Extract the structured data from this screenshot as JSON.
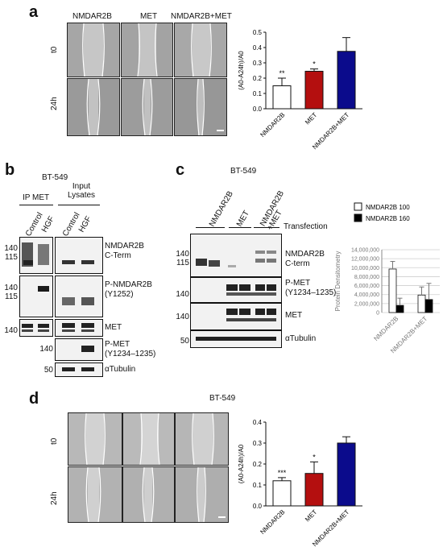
{
  "panels": {
    "a": {
      "letter": "a",
      "columns": [
        "NMDAR2B",
        "MET",
        "NMDAR2B+MET"
      ],
      "rows": [
        "t0",
        "24h"
      ]
    },
    "b": {
      "letter": "b",
      "cell_line": "BT-549",
      "group_ip": "IP MET",
      "group_input": "Input Lysates",
      "lanes": [
        "Control",
        "HGF",
        "Control",
        "HGF"
      ],
      "blots": [
        {
          "label": "NMDAR2B\nC-Term",
          "mw": [
            "140",
            "115"
          ]
        },
        {
          "label": "P-NMDAR2B\n(Y1252)",
          "mw": [
            "140",
            "115"
          ]
        },
        {
          "label": "MET",
          "mw": [
            "140"
          ]
        },
        {
          "label": "P-MET\n(Y1234–1235)",
          "mw": [
            "140"
          ]
        },
        {
          "label": "αTubulin",
          "mw": [
            "50"
          ]
        }
      ]
    },
    "c": {
      "letter": "c",
      "cell_line": "BT-549",
      "lanes": [
        "NMDAR2B",
        "MET",
        "NMDAR2B\n+MET"
      ],
      "transfection": "Transfection",
      "blots": [
        {
          "label": "NMDAR2B\nC-term",
          "mw": [
            "140",
            "115"
          ]
        },
        {
          "label": "P-MET\n(Y1234–1235)",
          "mw": [
            "140"
          ]
        },
        {
          "label": "MET",
          "mw": [
            "140"
          ]
        },
        {
          "label": "αTubulin",
          "mw": [
            "50"
          ]
        }
      ]
    },
    "d": {
      "letter": "d",
      "cell_line": "BT-549",
      "rows": [
        "t0",
        "24h"
      ]
    }
  },
  "chart_data": [
    {
      "id": "a",
      "type": "bar",
      "categories": [
        "NMDAR2B",
        "MET",
        "NMDAR2B+MET"
      ],
      "values": [
        0.15,
        0.245,
        0.375
      ],
      "errors": [
        0.05,
        0.015,
        0.09
      ],
      "significance": [
        "**",
        "*",
        ""
      ],
      "colors": [
        "#ffffff",
        "#b40f0f",
        "#0b0b8c"
      ],
      "ylabel": "(A0-A24h)/A0",
      "ylim": [
        0,
        0.5
      ],
      "yticks": [
        "0.0",
        "0.1",
        "0.2",
        "0.3",
        "0.4",
        "0.5"
      ]
    },
    {
      "id": "c",
      "type": "bar",
      "categories": [
        "NMDAR2B",
        "NMDAR2B+MET"
      ],
      "series": [
        {
          "name": "NMDAR2B 100",
          "values": [
            9700000,
            3900000
          ],
          "errors": [
            1700000,
            1800000
          ],
          "color": "#ffffff"
        },
        {
          "name": "NMDAR2B 160",
          "values": [
            1600000,
            2900000
          ],
          "errors": [
            1600000,
            3600000
          ],
          "color": "#000000"
        }
      ],
      "ylabel": "Protein Densitometry",
      "ylim": [
        0,
        14000000
      ],
      "yticks": [
        "0",
        "2,000,000",
        "4,000,000",
        "6,000,000",
        "8,000,000",
        "10,000,000",
        "12,000,000",
        "14,000,000"
      ],
      "grid": true,
      "legend": "top"
    },
    {
      "id": "d",
      "type": "bar",
      "categories": [
        "NMDAR2B",
        "MET",
        "NMDAR2B+MET"
      ],
      "values": [
        0.12,
        0.155,
        0.3
      ],
      "errors": [
        0.015,
        0.055,
        0.03
      ],
      "significance": [
        "***",
        "*",
        ""
      ],
      "colors": [
        "#ffffff",
        "#b40f0f",
        "#0b0b8c"
      ],
      "ylabel": "(A0-A24h)/A0",
      "ylim": [
        0,
        0.4
      ],
      "yticks": [
        "0.0",
        "0.1",
        "0.2",
        "0.3",
        "0.4"
      ]
    }
  ]
}
